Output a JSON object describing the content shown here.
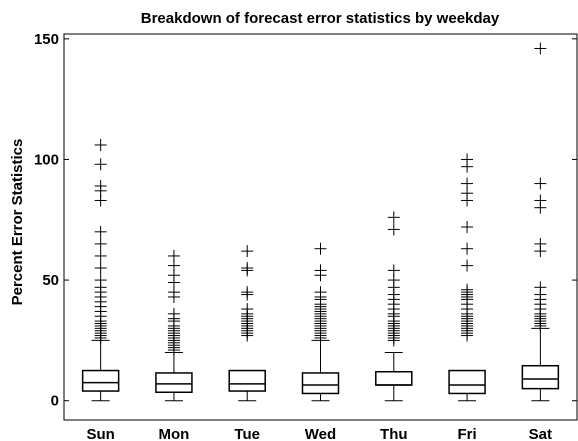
{
  "chart_data": {
    "type": "box",
    "title": "Breakdown of forecast error statistics by weekday",
    "xlabel": "",
    "ylabel": "Percent Error Statistics",
    "ylim": [
      -8,
      152
    ],
    "yticks": [
      0,
      50,
      100,
      150
    ],
    "grid": false,
    "categories": [
      "Sun",
      "Mon",
      "Tue",
      "Wed",
      "Thu",
      "Fri",
      "Sat"
    ],
    "boxes": [
      {
        "category": "Sun",
        "whisker_low": 0,
        "q1": 4,
        "median": 7.5,
        "q3": 12.5,
        "whisker_high": 25,
        "outliers": [
          106,
          98,
          89,
          87,
          83,
          70,
          65,
          60,
          55,
          50,
          47,
          45,
          43,
          41,
          39,
          37,
          35,
          33,
          32,
          31,
          30,
          29,
          28,
          27,
          26
        ]
      },
      {
        "category": "Mon",
        "whisker_low": 0,
        "q1": 3.5,
        "median": 7,
        "q3": 11.5,
        "whisker_high": 20,
        "outliers": [
          60,
          56,
          52,
          49,
          45,
          43,
          36,
          34,
          33,
          31,
          30,
          29,
          28,
          27,
          26,
          25,
          24,
          23,
          22,
          21
        ]
      },
      {
        "category": "Tue",
        "whisker_low": 0,
        "q1": 4,
        "median": 7,
        "q3": 12.5,
        "whisker_high": 12.5,
        "outliers": [
          62,
          55,
          54,
          45,
          44,
          38,
          36,
          35,
          34,
          33,
          32,
          31,
          30,
          29,
          28,
          27
        ]
      },
      {
        "category": "Wed",
        "whisker_low": 0,
        "q1": 3,
        "median": 6.5,
        "q3": 11.5,
        "whisker_high": 25,
        "outliers": [
          63,
          54,
          52,
          45,
          43,
          42,
          40,
          39,
          38,
          37,
          36,
          35,
          34,
          33,
          32,
          31,
          30,
          29,
          28,
          27,
          26
        ]
      },
      {
        "category": "Thu",
        "whisker_low": 0,
        "q1": 6.5,
        "median": 6.5,
        "q3": 12,
        "whisker_high": 20,
        "outliers": [
          76,
          71,
          54,
          50,
          47,
          44,
          42,
          40,
          38,
          36,
          35,
          33,
          32,
          31,
          30,
          29,
          28,
          27,
          26,
          25
        ]
      },
      {
        "category": "Fri",
        "whisker_low": 0,
        "q1": 3,
        "median": 6.5,
        "q3": 12.5,
        "whisker_high": 12.5,
        "outliers": [
          100,
          97,
          90,
          86,
          83,
          72,
          63,
          56,
          46,
          45,
          44,
          43,
          42,
          40,
          38,
          36,
          35,
          34,
          33,
          32,
          31,
          30,
          29,
          28,
          27
        ]
      },
      {
        "category": "Sat",
        "whisker_low": 0,
        "q1": 5,
        "median": 9,
        "q3": 14.5,
        "whisker_high": 30,
        "outliers": [
          146,
          90,
          83,
          80,
          65,
          62,
          47,
          44,
          42,
          40,
          38,
          36,
          35,
          34,
          33,
          32,
          31
        ]
      }
    ]
  }
}
